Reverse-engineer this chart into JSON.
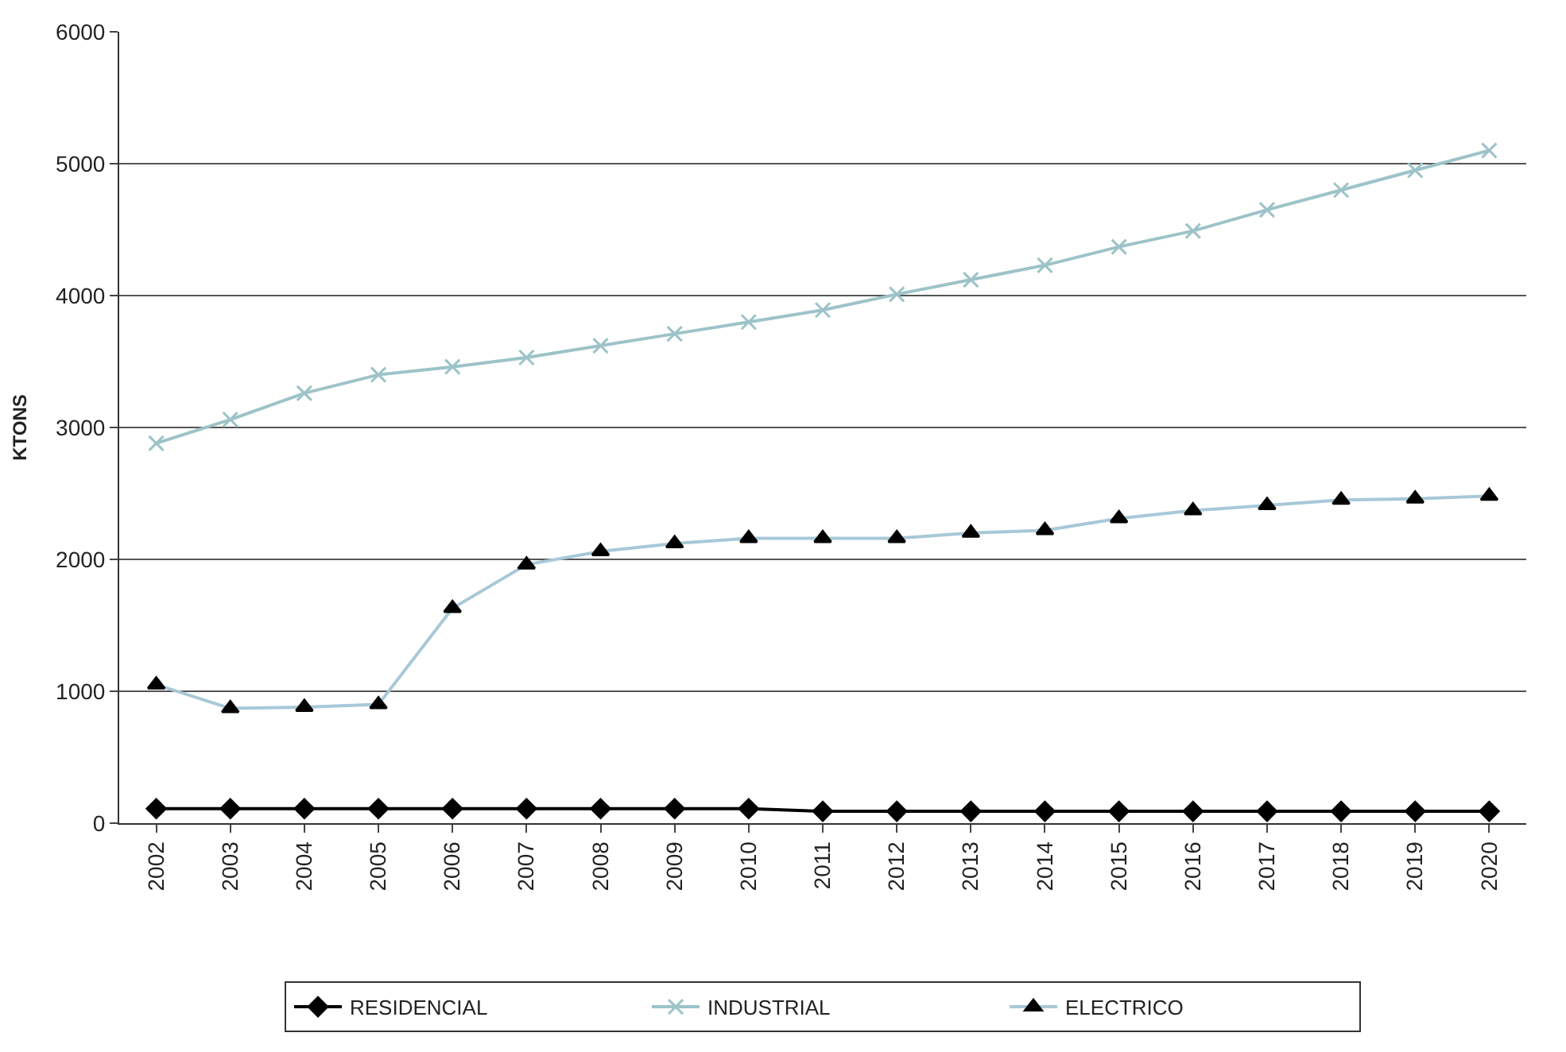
{
  "chart_data": {
    "type": "line",
    "ylabel": "KTONS",
    "categories": [
      "2002",
      "2003",
      "2004",
      "2005",
      "2006",
      "2007",
      "2008",
      "2009",
      "2010",
      "2011",
      "2012",
      "2013",
      "2014",
      "2015",
      "2016",
      "2017",
      "2018",
      "2019",
      "2020"
    ],
    "series": [
      {
        "name": "RESIDENCIAL",
        "color": "#000000",
        "marker": "diamond",
        "values": [
          110,
          110,
          110,
          110,
          110,
          110,
          110,
          110,
          110,
          90,
          90,
          90,
          90,
          90,
          90,
          90,
          90,
          90,
          90
        ]
      },
      {
        "name": "INDUSTRIAL",
        "color": "#9cc3c8",
        "marker": "cross",
        "values": [
          2880,
          3060,
          3260,
          3400,
          3460,
          3530,
          3620,
          3710,
          3800,
          3890,
          4010,
          4120,
          4230,
          4370,
          4490,
          4650,
          4800,
          4950,
          5100
        ]
      },
      {
        "name": "ELECTRICO",
        "color": "#a8c8d8",
        "marker": "triangle",
        "values": [
          1050,
          870,
          880,
          900,
          1630,
          1960,
          2060,
          2120,
          2160,
          2160,
          2160,
          2200,
          2220,
          2310,
          2370,
          2410,
          2450,
          2460,
          2480
        ]
      }
    ],
    "ylim": [
      0,
      6000
    ],
    "yticks": [
      0,
      1000,
      2000,
      3000,
      4000,
      5000,
      6000
    ],
    "grid": "y",
    "legend": "bottom"
  }
}
